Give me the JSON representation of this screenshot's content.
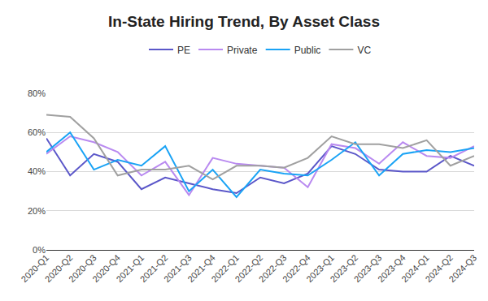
{
  "chart_data": {
    "type": "line",
    "title": "In-State Hiring Trend, By Asset Class",
    "categories": [
      "2020-Q1",
      "2020-Q2",
      "2020-Q3",
      "2020-Q4",
      "2021-Q1",
      "2021-Q2",
      "2021-Q3",
      "2021-Q4",
      "2022-Q1",
      "2022-Q2",
      "2022-Q3",
      "2022-Q4",
      "2023-Q1",
      "2023-Q2",
      "2023-Q3",
      "2023-Q4",
      "2024-Q1",
      "2024-Q2",
      "2024-Q3"
    ],
    "series": [
      {
        "name": "PE",
        "color": "#5b57c9",
        "line_style": "solid",
        "values": [
          57,
          38,
          49,
          45,
          31,
          37,
          34,
          31,
          29,
          37,
          34,
          39,
          53,
          49,
          41,
          40,
          40,
          48,
          43
        ]
      },
      {
        "name": "Private",
        "color": "#b98af0",
        "line_style": "solid",
        "values": [
          49,
          58,
          55,
          50,
          38,
          45,
          28,
          47,
          44,
          43,
          42,
          32,
          54,
          52,
          44,
          55,
          48,
          47,
          53
        ]
      },
      {
        "name": "Public",
        "color": "#1aa3f5",
        "line_style": "solid",
        "values": [
          50,
          60,
          41,
          46,
          43,
          53,
          30,
          41,
          27,
          41,
          39,
          38,
          46,
          55,
          38,
          49,
          51,
          50,
          52
        ]
      },
      {
        "name": "VC",
        "color": "#a0a0a0",
        "line_style": "solid",
        "values": [
          69,
          68,
          57,
          38,
          41,
          41,
          43,
          36,
          43,
          43,
          42,
          47,
          58,
          54,
          54,
          52,
          56,
          43,
          48
        ]
      }
    ],
    "ylim": [
      0,
      80
    ],
    "yticks": [
      {
        "value": 0,
        "label": "0%"
      },
      {
        "value": 20,
        "label": "20%"
      },
      {
        "value": 40,
        "label": "40%"
      },
      {
        "value": 60,
        "label": "60%"
      },
      {
        "value": 80,
        "label": "80%"
      }
    ],
    "grid": true,
    "legend": "top"
  }
}
